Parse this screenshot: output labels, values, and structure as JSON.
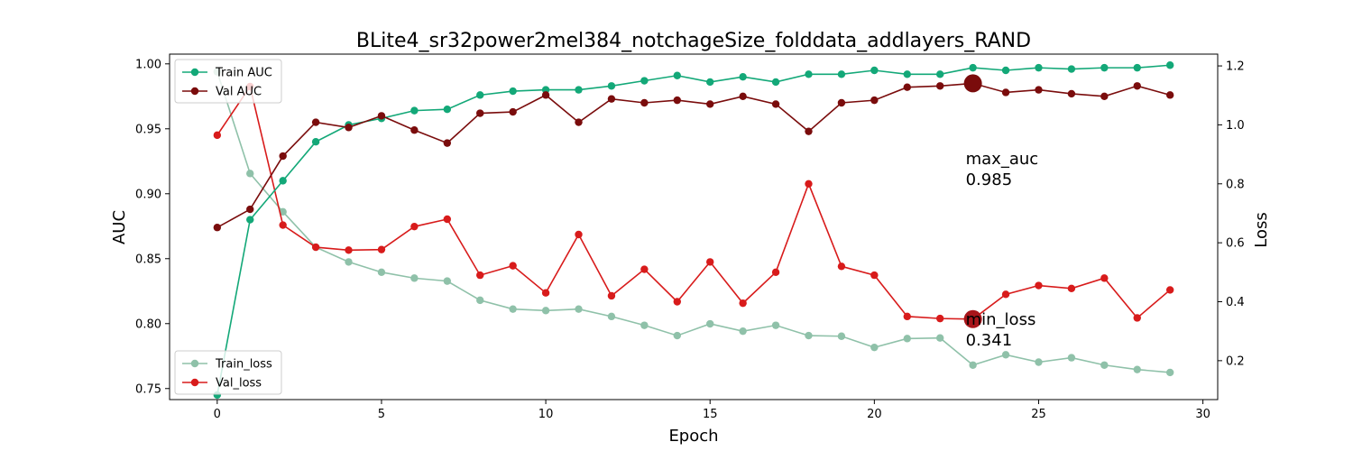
{
  "chart_data": {
    "type": "line",
    "title": "BLite4_sr32power2mel384_notchageSize_folddata_addlayers_RAND",
    "xlabel": "Epoch",
    "ylabel_left": "AUC",
    "ylabel_right": "Loss",
    "xlim": [
      -1.45,
      30.45
    ],
    "ylim_left": [
      0.7415,
      1.0075
    ],
    "ylim_right": [
      0.068,
      1.24
    ],
    "xticks": [
      0,
      5,
      10,
      15,
      20,
      25,
      30
    ],
    "yticks_left": [
      0.75,
      0.8,
      0.85,
      0.9,
      0.95,
      1.0
    ],
    "yticks_left_labels": [
      "0.75",
      "0.80",
      "0.85",
      "0.90",
      "0.95",
      "1.00"
    ],
    "yticks_right": [
      0.2,
      0.4,
      0.6,
      0.8,
      1.0,
      1.2
    ],
    "yticks_right_labels": [
      "0.2",
      "0.4",
      "0.6",
      "0.8",
      "1.0",
      "1.2"
    ],
    "x": [
      0,
      1,
      2,
      3,
      4,
      5,
      6,
      7,
      8,
      9,
      10,
      11,
      12,
      13,
      14,
      15,
      16,
      17,
      18,
      19,
      20,
      21,
      22,
      23,
      24,
      25,
      26,
      27,
      28,
      29
    ],
    "series": [
      {
        "name": "Train AUC",
        "axis": "left",
        "color": "#13a878",
        "values": [
          0.745,
          0.88,
          0.91,
          0.94,
          0.953,
          0.958,
          0.964,
          0.965,
          0.976,
          0.979,
          0.98,
          0.98,
          0.983,
          0.987,
          0.991,
          0.986,
          0.99,
          0.986,
          0.992,
          0.992,
          0.995,
          0.992,
          0.992,
          0.997,
          0.995,
          0.997,
          0.996,
          0.997,
          0.997,
          0.999
        ]
      },
      {
        "name": "Val AUC",
        "axis": "left",
        "color": "#7a0c0c",
        "values": [
          0.874,
          0.888,
          0.929,
          0.955,
          0.951,
          0.96,
          0.949,
          0.939,
          0.962,
          0.963,
          0.976,
          0.955,
          0.973,
          0.97,
          0.972,
          0.969,
          0.975,
          0.969,
          0.948,
          0.97,
          0.972,
          0.982,
          0.983,
          0.985,
          0.978,
          0.98,
          0.977,
          0.975,
          0.983,
          0.976
        ]
      },
      {
        "name": "Train_loss",
        "axis": "right",
        "color": "#8fc1a9",
        "values": [
          1.18,
          0.835,
          0.705,
          0.585,
          0.535,
          0.5,
          0.48,
          0.47,
          0.405,
          0.375,
          0.37,
          0.375,
          0.35,
          0.32,
          0.285,
          0.325,
          0.3,
          0.32,
          0.285,
          0.283,
          0.245,
          0.275,
          0.277,
          0.185,
          0.22,
          0.195,
          0.21,
          0.185,
          0.17,
          0.16
        ]
      },
      {
        "name": "Val_loss",
        "axis": "right",
        "color": "#d81b1b",
        "values": [
          0.965,
          1.13,
          0.66,
          0.585,
          0.575,
          0.577,
          0.655,
          0.68,
          0.49,
          0.522,
          0.43,
          0.628,
          0.42,
          0.51,
          0.4,
          0.535,
          0.395,
          0.5,
          0.8,
          0.52,
          0.49,
          0.35,
          0.343,
          0.341,
          0.425,
          0.455,
          0.445,
          0.48,
          0.345,
          0.44
        ]
      }
    ],
    "annotations": [
      {
        "name": "max_auc",
        "label": "max_auc",
        "value_text": "0.985",
        "x": 23,
        "y": 0.985,
        "axis": "left",
        "color": "#7a0c0c"
      },
      {
        "name": "min_loss",
        "label": "min_loss",
        "value_text": "0.341",
        "x": 23,
        "y": 0.341,
        "axis": "right",
        "color": "#a8151a"
      }
    ],
    "legends": [
      {
        "placement": "upper-left",
        "entries": [
          "Train AUC",
          "Val AUC"
        ]
      },
      {
        "placement": "lower-left",
        "entries": [
          "Train_loss",
          "Val_loss"
        ]
      }
    ],
    "grid": false
  }
}
